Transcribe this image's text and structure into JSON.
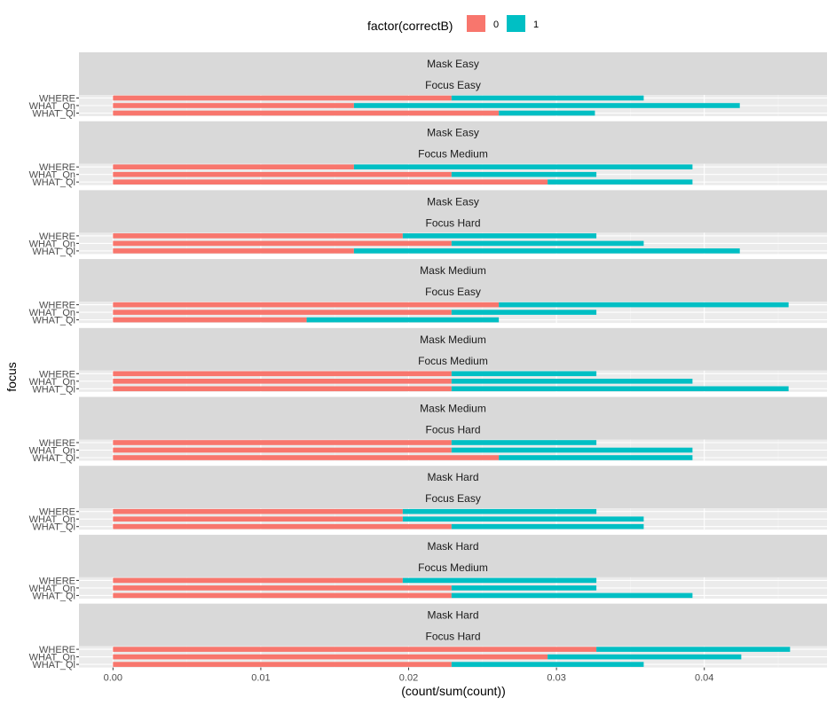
{
  "chart_data": {
    "type": "bar",
    "orientation": "horizontal",
    "stacked": true,
    "xlabel": "(count/sum(count))",
    "ylabel": "focus",
    "xlim": [
      -0.0023,
      0.0483
    ],
    "x_ticks": [
      0.0,
      0.01,
      0.02,
      0.03,
      0.04
    ],
    "x_tick_labels": [
      "0.00",
      "0.01",
      "0.02",
      "0.03",
      "0.04"
    ],
    "categories": [
      "WHERE",
      "WHAT_Qn",
      "WHAT_Ql"
    ],
    "legend": {
      "title": "factor(correctB)",
      "position": "top",
      "entries": [
        {
          "label": "0",
          "color": "#F8766D"
        },
        {
          "label": "1",
          "color": "#00BFC4"
        }
      ]
    },
    "grid": true,
    "panels": [
      {
        "strip1": "Mask Easy",
        "strip2": "Focus Easy",
        "series": [
          {
            "name": "0",
            "values": [
              0.0229,
              0.0163,
              0.0261
            ]
          },
          {
            "name": "1",
            "values": [
              0.013,
              0.0261,
              0.0065
            ]
          }
        ]
      },
      {
        "strip1": "Mask Easy",
        "strip2": "Focus Medium",
        "series": [
          {
            "name": "0",
            "values": [
              0.0163,
              0.0229,
              0.0294
            ]
          },
          {
            "name": "1",
            "values": [
              0.0229,
              0.0098,
              0.0098
            ]
          }
        ]
      },
      {
        "strip1": "Mask Easy",
        "strip2": "Focus Hard",
        "series": [
          {
            "name": "0",
            "values": [
              0.0196,
              0.0229,
              0.0163
            ]
          },
          {
            "name": "1",
            "values": [
              0.0131,
              0.013,
              0.0261
            ]
          }
        ]
      },
      {
        "strip1": "Mask Medium",
        "strip2": "Focus Easy",
        "series": [
          {
            "name": "0",
            "values": [
              0.0261,
              0.0229,
              0.0131
            ]
          },
          {
            "name": "1",
            "values": [
              0.0196,
              0.0098,
              0.013
            ]
          }
        ]
      },
      {
        "strip1": "Mask Medium",
        "strip2": "Focus Medium",
        "series": [
          {
            "name": "0",
            "values": [
              0.0229,
              0.0229,
              0.0229
            ]
          },
          {
            "name": "1",
            "values": [
              0.0098,
              0.0163,
              0.0228
            ]
          }
        ]
      },
      {
        "strip1": "Mask Medium",
        "strip2": "Focus Hard",
        "series": [
          {
            "name": "0",
            "values": [
              0.0229,
              0.0229,
              0.0261
            ]
          },
          {
            "name": "1",
            "values": [
              0.0098,
              0.0163,
              0.0131
            ]
          }
        ]
      },
      {
        "strip1": "Mask Hard",
        "strip2": "Focus Easy",
        "series": [
          {
            "name": "0",
            "values": [
              0.0196,
              0.0196,
              0.0229
            ]
          },
          {
            "name": "1",
            "values": [
              0.0131,
              0.0163,
              0.013
            ]
          }
        ]
      },
      {
        "strip1": "Mask Hard",
        "strip2": "Focus Medium",
        "series": [
          {
            "name": "0",
            "values": [
              0.0196,
              0.0229,
              0.0229
            ]
          },
          {
            "name": "1",
            "values": [
              0.0131,
              0.0098,
              0.0163
            ]
          }
        ]
      },
      {
        "strip1": "Mask Hard",
        "strip2": "Focus Hard",
        "series": [
          {
            "name": "0",
            "values": [
              0.0327,
              0.0294,
              0.0229
            ]
          },
          {
            "name": "1",
            "values": [
              0.0131,
              0.0131,
              0.013
            ]
          }
        ]
      }
    ]
  }
}
